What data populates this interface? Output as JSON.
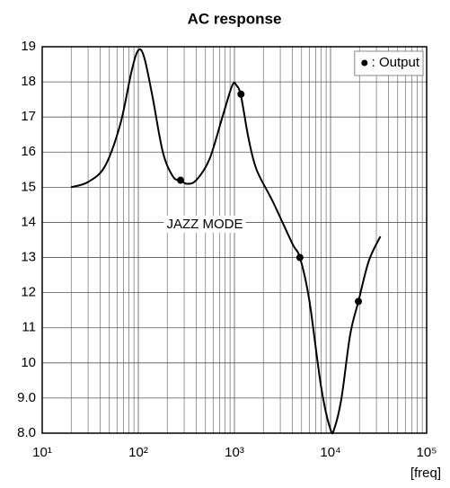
{
  "chart_data": {
    "type": "line",
    "title": "AC response",
    "x_label": "[freq]",
    "annotation": "JAZZ MODE",
    "xscale": "log",
    "grid": true,
    "minor_grid": true,
    "legend": "upper right",
    "xlim": [
      10,
      100000
    ],
    "xticks": [
      {
        "value": 10,
        "label": "10¹"
      },
      {
        "value": 100,
        "label": "10²"
      },
      {
        "value": 1000,
        "label": "10³"
      },
      {
        "value": 10000,
        "label": "10⁴"
      },
      {
        "value": 100000,
        "label": "10⁵"
      }
    ],
    "ylim": [
      8,
      19
    ],
    "yticks": [
      {
        "value": 8,
        "label": "8.0"
      },
      {
        "value": 9,
        "label": "9.0"
      },
      10,
      11,
      12,
      13,
      14,
      15,
      16,
      17,
      18,
      19
    ],
    "series": [
      {
        "color": "#000000",
        "x": [
          20,
          30,
          45,
          65,
          85,
          100,
          115,
          140,
          180,
          230,
          275,
          320,
          400,
          550,
          750,
          950,
          1050,
          1170,
          1400,
          1700,
          2500,
          4000,
          4800,
          6000,
          8000,
          10000,
          11000,
          13000,
          16000,
          19500,
          25000,
          33000
        ],
        "values": [
          15.0,
          15.15,
          15.6,
          16.8,
          18.3,
          18.9,
          18.7,
          17.6,
          16.0,
          15.3,
          15.2,
          15.1,
          15.2,
          15.8,
          17.0,
          17.9,
          17.9,
          17.6,
          16.4,
          15.5,
          14.6,
          13.4,
          13.0,
          11.8,
          9.3,
          8.1,
          8.15,
          9.0,
          10.8,
          11.75,
          12.9,
          13.6
        ]
      },
      {
        "name": ": Output",
        "type": "scatter",
        "color": "#000000",
        "x": [
          275,
          1170,
          4800,
          19500
        ],
        "values": [
          15.2,
          17.65,
          13.0,
          11.75
        ]
      }
    ]
  }
}
